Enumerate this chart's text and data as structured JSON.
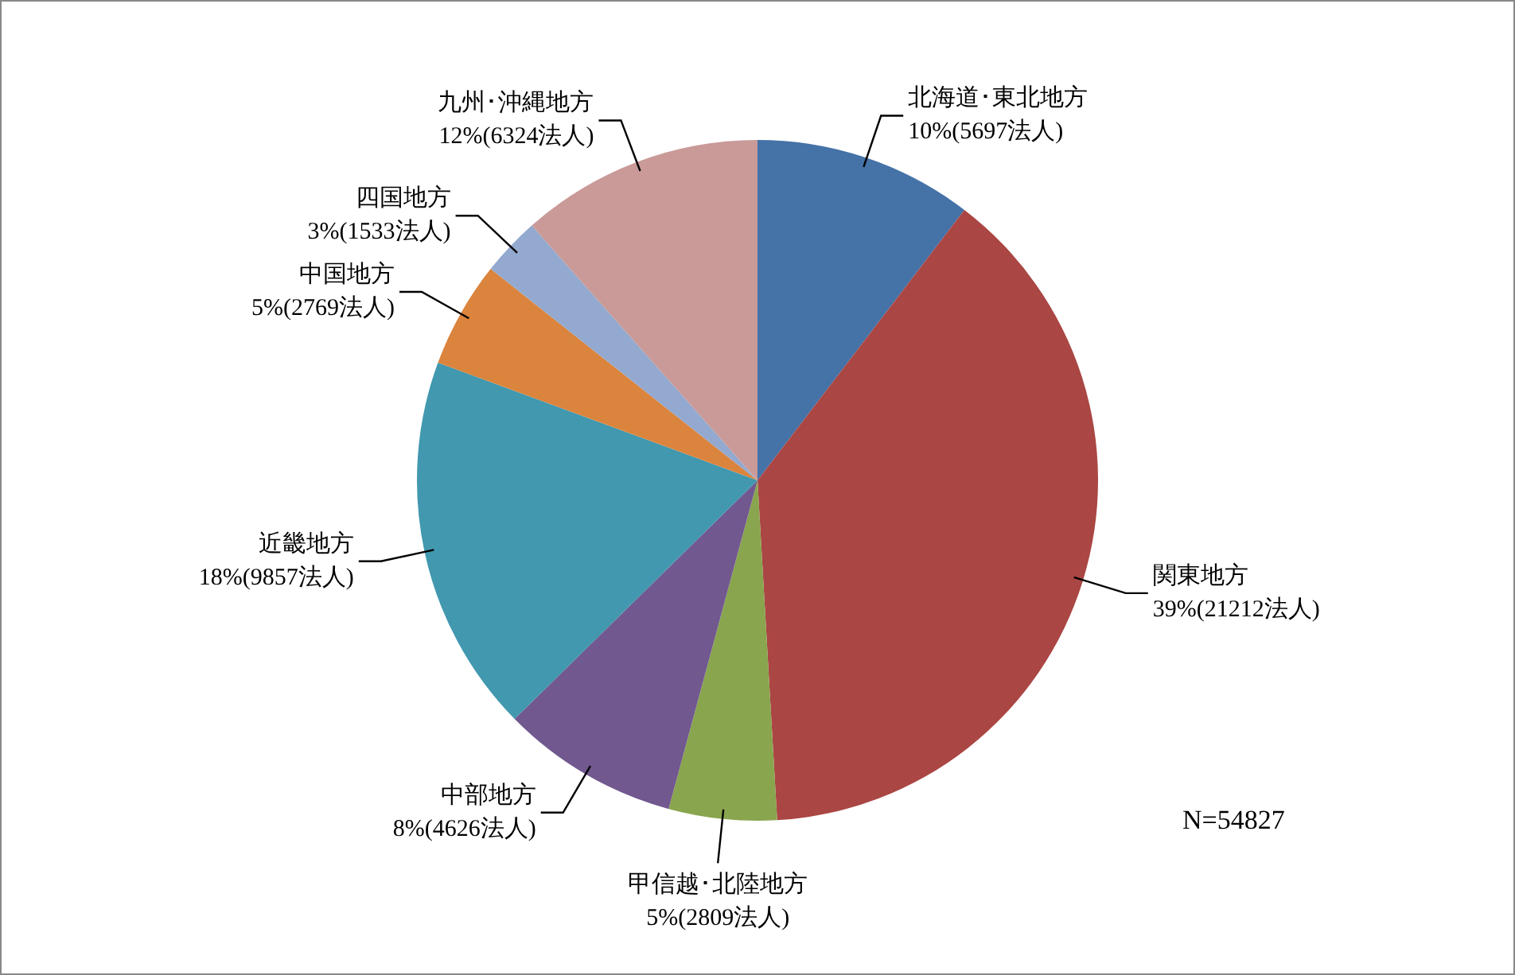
{
  "chart_data": {
    "type": "pie",
    "categories": [
      "北海道･東北地方",
      "関東地方",
      "甲信越･北陸地方",
      "中部地方",
      "近畿地方",
      "中国地方",
      "四国地方",
      "九州･沖縄地方"
    ],
    "values": [
      5697,
      21212,
      2809,
      4626,
      9857,
      2769,
      1533,
      6324
    ],
    "value_labels": [
      "10%(5697法人)",
      "39%(21212法人)",
      "5%(2809法人)",
      "8%(4626法人)",
      "18%(9857法人)",
      "5%(2769法人)",
      "3%(1533法人)",
      "12%(6324法人)"
    ],
    "colors": [
      "#4572a7",
      "#aa4643",
      "#89a54e",
      "#71588f",
      "#4198af",
      "#db843d",
      "#93a9cf",
      "#c99a98"
    ],
    "legend": false,
    "annotations": [
      "N=54827"
    ]
  }
}
